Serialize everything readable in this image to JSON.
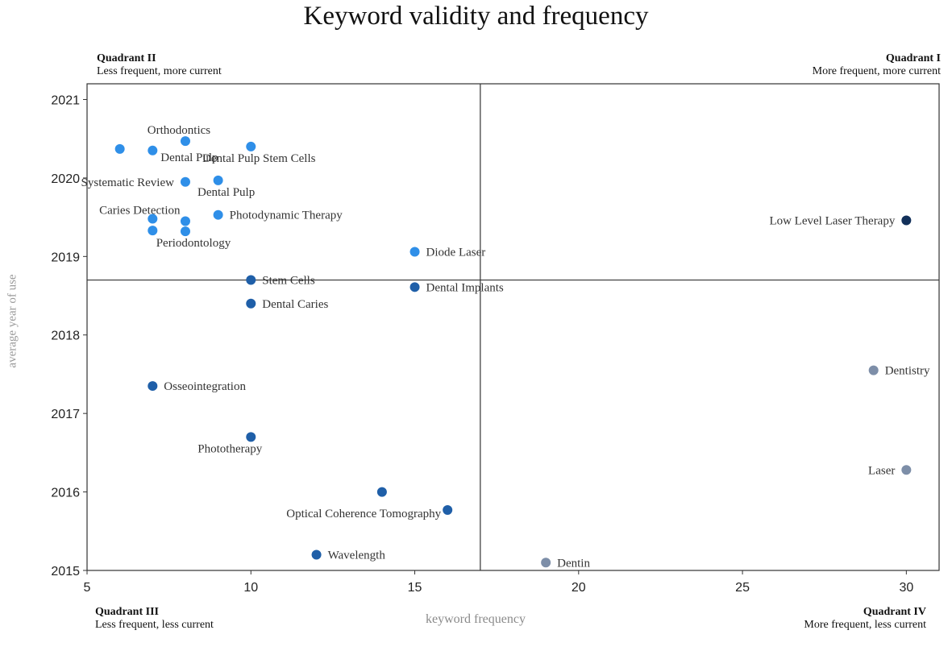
{
  "title": "Keyword validity and frequency",
  "quadrants": {
    "q1": {
      "name": "Quadrant I",
      "desc": "More frequent, more current"
    },
    "q2": {
      "name": "Quadrant II",
      "desc": "Less frequent, more current"
    },
    "q3": {
      "name": "Quadrant III",
      "desc": "Less frequent, less current"
    },
    "q4": {
      "name": "Quadrant IV",
      "desc": "More frequent, less current"
    }
  },
  "colors": {
    "light_blue": "#2f8fe8",
    "mid_blue": "#1f5fa8",
    "dark_navy": "#12305a",
    "grey_blue": "#7d8ea8"
  },
  "chart_data": {
    "type": "scatter",
    "title": "Keyword validity and frequency",
    "xlabel": "keyword frequency",
    "ylabel": "average year of use",
    "xlim": [
      5,
      31
    ],
    "ylim": [
      2015,
      2021.2
    ],
    "xticks": [
      5,
      10,
      15,
      20,
      25,
      30
    ],
    "yticks": [
      2015,
      2016,
      2017,
      2018,
      2019,
      2020,
      2021
    ],
    "dividers": {
      "x": 17,
      "y": 2018.7
    },
    "grid": false,
    "legend": "none",
    "points": [
      {
        "label": "",
        "x": 6,
        "y": 2020.37,
        "color": "light_blue",
        "anchor": "none"
      },
      {
        "label": "Orthodontics",
        "x": 8,
        "y": 2020.47,
        "color": "light_blue",
        "anchor": "above"
      },
      {
        "label": "Dental Pulp Stem Cells",
        "x": 10,
        "y": 2020.4,
        "color": "light_blue",
        "anchor": "below"
      },
      {
        "label": "Dental Pulp",
        "x": 7,
        "y": 2020.35,
        "color": "light_blue",
        "anchor": "right-low"
      },
      {
        "label": "Systematic Review",
        "x": 8,
        "y": 2019.95,
        "color": "light_blue",
        "anchor": "left"
      },
      {
        "label": "Dental Pulp",
        "x": 9,
        "y": 2019.97,
        "color": "light_blue",
        "anchor": "below"
      },
      {
        "label": "Caries Detection",
        "x": 7,
        "y": 2019.48,
        "color": "light_blue",
        "anchor": "above-left"
      },
      {
        "label": "",
        "x": 8,
        "y": 2019.45,
        "color": "light_blue",
        "anchor": "none"
      },
      {
        "label": "Photodynamic Therapy",
        "x": 9,
        "y": 2019.53,
        "color": "light_blue",
        "anchor": "right"
      },
      {
        "label": "",
        "x": 7,
        "y": 2019.33,
        "color": "light_blue",
        "anchor": "none"
      },
      {
        "label": "Periodontology",
        "x": 8,
        "y": 2019.32,
        "color": "light_blue",
        "anchor": "below"
      },
      {
        "label": "Diode Laser",
        "x": 15,
        "y": 2019.06,
        "color": "light_blue",
        "anchor": "right"
      },
      {
        "label": "Low Level Laser Therapy",
        "x": 30,
        "y": 2019.46,
        "color": "dark_navy",
        "anchor": "left"
      },
      {
        "label": "Stem Cells",
        "x": 10,
        "y": 2018.7,
        "color": "mid_blue",
        "anchor": "right"
      },
      {
        "label": "Dental Implants",
        "x": 15,
        "y": 2018.61,
        "color": "mid_blue",
        "anchor": "right"
      },
      {
        "label": "Dental Caries",
        "x": 10,
        "y": 2018.4,
        "color": "mid_blue",
        "anchor": "right"
      },
      {
        "label": "Osseointegration",
        "x": 7,
        "y": 2017.35,
        "color": "mid_blue",
        "anchor": "right"
      },
      {
        "label": "Phototherapy",
        "x": 10,
        "y": 2016.7,
        "color": "mid_blue",
        "anchor": "below-left"
      },
      {
        "label": "",
        "x": 14,
        "y": 2016.0,
        "color": "mid_blue",
        "anchor": "none"
      },
      {
        "label": "Optical Coherence Tomography",
        "x": 16,
        "y": 2015.77,
        "color": "mid_blue",
        "anchor": "left-low"
      },
      {
        "label": "Wavelength",
        "x": 12,
        "y": 2015.2,
        "color": "mid_blue",
        "anchor": "right"
      },
      {
        "label": "Dentistry",
        "x": 29,
        "y": 2017.55,
        "color": "grey_blue",
        "anchor": "right"
      },
      {
        "label": "Laser",
        "x": 30,
        "y": 2016.28,
        "color": "grey_blue",
        "anchor": "left"
      },
      {
        "label": "Dentin",
        "x": 19,
        "y": 2015.1,
        "color": "grey_blue",
        "anchor": "right"
      }
    ]
  }
}
